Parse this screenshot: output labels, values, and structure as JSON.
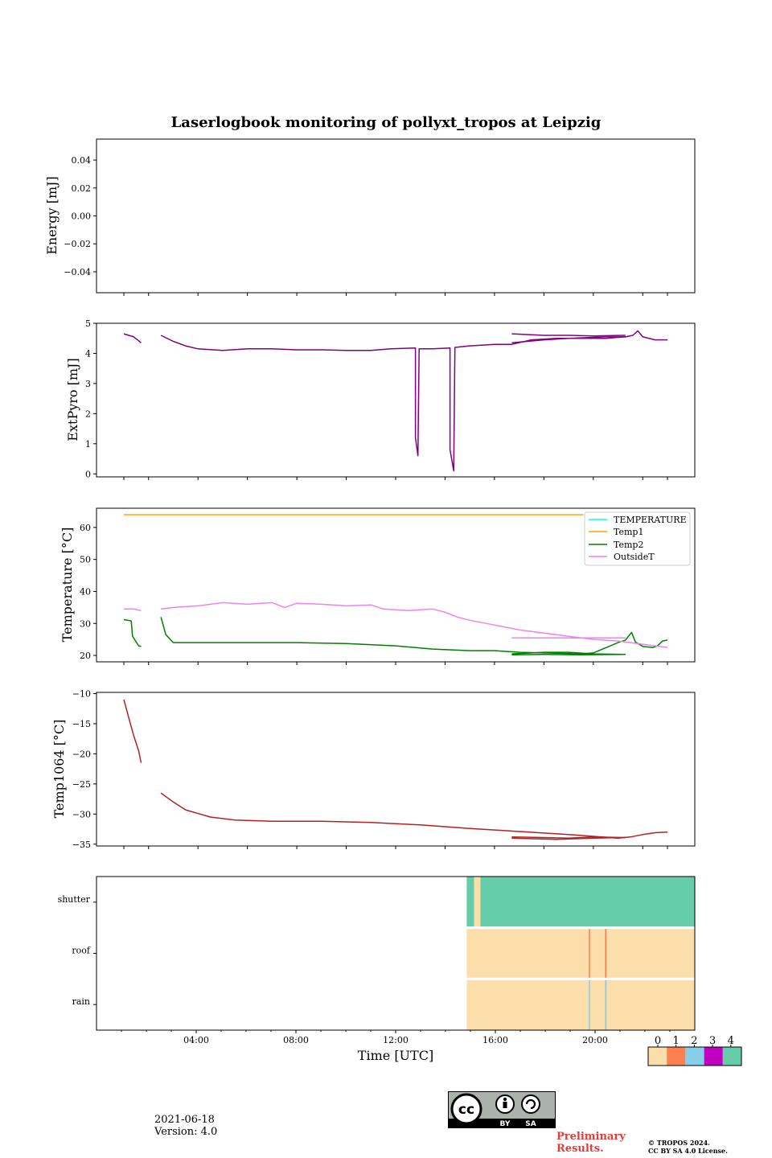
{
  "title": "Laserlogbook monitoring of pollyxt_tropos at Leipzig",
  "xaxis": {
    "label": "Time [UTC]",
    "ticks": [
      "04:00",
      "08:00",
      "12:00",
      "16:00",
      "20:00"
    ]
  },
  "footer": {
    "date": "2021-06-18",
    "version": "Version: 4.0",
    "preliminary": "Preliminary Results.",
    "copyright_line1": "© TROPOS 2024.",
    "copyright_line2": "CC BY SA 4.0 License.",
    "cc_by": "BY",
    "cc_sa": "SA"
  },
  "colors": {
    "extpyro": "#800080",
    "temperature": "#00ffff",
    "temp1": "#ffa500",
    "temp2": "#008000",
    "outsideT": "#ee82ee",
    "temp1064": "#b22222",
    "status": [
      "#fcdeaa",
      "#ff7f50",
      "#87ceeb",
      "#c000c0",
      "#66cdaa"
    ]
  },
  "chart_data": [
    {
      "type": "line",
      "name": "energy",
      "ylabel": "Energy [mJ]",
      "ylim": [
        -0.055,
        0.055
      ],
      "yticks": [
        -0.04,
        -0.02,
        0.0,
        0.02,
        0.04
      ],
      "ytick_labels": [
        "−0.04",
        "−0.02",
        "0.00",
        "0.02",
        "0.04"
      ],
      "series": []
    },
    {
      "type": "line",
      "name": "extpyro",
      "ylabel": "ExtPyro [mJ]",
      "ylim": [
        -0.1,
        5.0
      ],
      "yticks": [
        0,
        1,
        2,
        3,
        4,
        5
      ],
      "ytick_labels": [
        "0",
        "1",
        "2",
        "3",
        "4",
        "5"
      ],
      "series": [
        {
          "name": "ExtPyro",
          "segments": [
            [
              [
                1.0,
                4.65
              ],
              [
                1.2,
                4.6
              ],
              [
                1.4,
                4.55
              ],
              [
                1.55,
                4.45
              ],
              [
                1.7,
                4.35
              ]
            ],
            [
              [
                2.5,
                4.6
              ],
              [
                3.0,
                4.4
              ],
              [
                3.5,
                4.25
              ],
              [
                4.0,
                4.15
              ],
              [
                5.0,
                4.1
              ],
              [
                6.0,
                4.15
              ],
              [
                7.0,
                4.15
              ],
              [
                8.0,
                4.12
              ],
              [
                9.0,
                4.12
              ],
              [
                10.0,
                4.1
              ],
              [
                11.0,
                4.1
              ],
              [
                11.8,
                4.15
              ],
              [
                12.8,
                4.18
              ],
              [
                12.8,
                1.2
              ],
              [
                12.9,
                0.6
              ],
              [
                12.95,
                4.15
              ],
              [
                13.5,
                4.15
              ],
              [
                14.2,
                4.18
              ],
              [
                14.2,
                0.8
              ],
              [
                14.35,
                0.1
              ],
              [
                14.4,
                4.2
              ],
              [
                15.0,
                4.25
              ],
              [
                16.0,
                4.3
              ],
              [
                16.7,
                4.3
              ],
              [
                17.5,
                4.45
              ],
              [
                18.5,
                4.5
              ],
              [
                19.5,
                4.5
              ],
              [
                20.5,
                4.5
              ],
              [
                21.3,
                4.55
              ],
              [
                21.6,
                4.6
              ],
              [
                21.8,
                4.75
              ],
              [
                22.0,
                4.55
              ],
              [
                22.5,
                4.45
              ],
              [
                23.0,
                4.45
              ]
            ],
            [
              [
                16.7,
                4.65
              ],
              [
                18.0,
                4.6
              ],
              [
                19.0,
                4.6
              ],
              [
                20.0,
                4.58
              ],
              [
                21.3,
                4.6
              ]
            ],
            [
              [
                16.7,
                4.35
              ],
              [
                18.0,
                4.45
              ],
              [
                19.0,
                4.5
              ],
              [
                20.5,
                4.55
              ],
              [
                21.3,
                4.55
              ]
            ]
          ]
        }
      ]
    },
    {
      "type": "line",
      "name": "temperatures",
      "ylabel": "Temperature [°C]",
      "ylim": [
        18,
        66
      ],
      "yticks": [
        20,
        30,
        40,
        50,
        60
      ],
      "ytick_labels": [
        "20",
        "30",
        "40",
        "50",
        "60"
      ],
      "legend": [
        "TEMPERATURE",
        "Temp1",
        "Temp2",
        "OutsideT"
      ],
      "legend_loc": "upper right",
      "series": [
        {
          "name": "TEMPERATURE",
          "segments": []
        },
        {
          "name": "Temp1",
          "segments": [
            [
              [
                1.0,
                64.0
              ],
              [
                19.6,
                64.0
              ]
            ]
          ]
        },
        {
          "name": "Temp2",
          "segments": [
            [
              [
                1.0,
                31.2
              ],
              [
                1.3,
                30.8
              ],
              [
                1.35,
                26.0
              ],
              [
                1.6,
                23.0
              ],
              [
                1.7,
                22.8
              ]
            ],
            [
              [
                2.5,
                32.0
              ],
              [
                2.7,
                26.5
              ],
              [
                3.0,
                24.0
              ],
              [
                5.0,
                24.0
              ],
              [
                8.0,
                24.0
              ],
              [
                10.0,
                23.7
              ],
              [
                12.0,
                23.0
              ],
              [
                13.5,
                22.0
              ],
              [
                15.0,
                21.5
              ],
              [
                16.0,
                21.5
              ],
              [
                17.0,
                21.0
              ],
              [
                18.5,
                20.7
              ],
              [
                19.5,
                20.5
              ],
              [
                20.0,
                20.8
              ],
              [
                21.0,
                24.0
              ],
              [
                21.3,
                24.8
              ],
              [
                21.55,
                27.2
              ],
              [
                21.7,
                24.2
              ],
              [
                22.0,
                22.8
              ],
              [
                22.4,
                22.5
              ],
              [
                22.6,
                23.0
              ],
              [
                22.8,
                24.5
              ],
              [
                23.0,
                24.8
              ]
            ],
            [
              [
                16.7,
                20.5
              ],
              [
                18.0,
                21.0
              ],
              [
                19.0,
                21.0
              ],
              [
                20.0,
                20.5
              ],
              [
                21.3,
                20.3
              ]
            ],
            [
              [
                16.7,
                20.2
              ],
              [
                18.0,
                20.3
              ],
              [
                19.5,
                20.2
              ],
              [
                21.3,
                20.3
              ]
            ]
          ]
        },
        {
          "name": "OutsideT",
          "segments": [
            [
              [
                1.0,
                34.5
              ],
              [
                1.4,
                34.5
              ],
              [
                1.7,
                34.0
              ]
            ],
            [
              [
                2.5,
                34.5
              ],
              [
                3.0,
                35.0
              ],
              [
                4.0,
                35.5
              ],
              [
                5.0,
                36.5
              ],
              [
                6.0,
                36.0
              ],
              [
                7.0,
                36.5
              ],
              [
                7.5,
                35.0
              ],
              [
                8.0,
                36.3
              ],
              [
                9.0,
                36.0
              ],
              [
                10.0,
                35.5
              ],
              [
                11.0,
                35.8
              ],
              [
                11.5,
                34.5
              ],
              [
                12.5,
                34.0
              ],
              [
                13.5,
                34.5
              ],
              [
                14.0,
                33.5
              ],
              [
                14.5,
                32.0
              ],
              [
                15.0,
                31.0
              ],
              [
                16.0,
                29.5
              ],
              [
                17.0,
                28.0
              ],
              [
                18.0,
                27.0
              ],
              [
                19.0,
                26.0
              ],
              [
                20.0,
                25.0
              ],
              [
                21.0,
                24.5
              ],
              [
                22.0,
                23.5
              ],
              [
                23.0,
                22.5
              ]
            ],
            [
              [
                16.7,
                25.5
              ],
              [
                18.0,
                25.5
              ],
              [
                19.5,
                25.5
              ],
              [
                21.3,
                25.5
              ]
            ]
          ]
        }
      ]
    },
    {
      "type": "line",
      "name": "temp1064",
      "ylabel": "Temp1064 [°C]",
      "ylim": [
        -35.3,
        -9.8
      ],
      "yticks": [
        -35,
        -30,
        -25,
        -20,
        -15,
        -10
      ],
      "ytick_labels": [
        "−35",
        "−30",
        "−25",
        "−20",
        "−15",
        "−10"
      ],
      "series": [
        {
          "name": "Temp1064",
          "segments": [
            [
              [
                1.0,
                -11.0
              ],
              [
                1.2,
                -14.0
              ],
              [
                1.4,
                -17.0
              ],
              [
                1.6,
                -19.5
              ],
              [
                1.7,
                -21.5
              ]
            ],
            [
              [
                2.5,
                -26.5
              ],
              [
                3.0,
                -28.0
              ],
              [
                3.5,
                -29.3
              ],
              [
                4.5,
                -30.5
              ],
              [
                5.5,
                -31.0
              ],
              [
                7.0,
                -31.2
              ],
              [
                9.0,
                -31.2
              ],
              [
                11.0,
                -31.4
              ],
              [
                13.0,
                -31.8
              ],
              [
                15.0,
                -32.4
              ],
              [
                17.0,
                -32.9
              ],
              [
                19.0,
                -33.4
              ],
              [
                20.0,
                -33.7
              ],
              [
                21.0,
                -34.0
              ],
              [
                21.5,
                -33.8
              ],
              [
                22.0,
                -33.4
              ],
              [
                22.5,
                -33.1
              ],
              [
                23.0,
                -33.0
              ]
            ],
            [
              [
                16.7,
                -33.8
              ],
              [
                18.0,
                -33.9
              ],
              [
                19.0,
                -34.0
              ],
              [
                20.0,
                -33.8
              ],
              [
                21.3,
                -33.9
              ]
            ],
            [
              [
                16.7,
                -34.0
              ],
              [
                18.5,
                -34.2
              ],
              [
                20.0,
                -34.0
              ],
              [
                21.3,
                -33.9
              ]
            ]
          ]
        }
      ]
    },
    {
      "type": "heatmap",
      "name": "status",
      "rows": [
        "shutter",
        "roof",
        "rain"
      ],
      "colorbar_ticks": [
        "0",
        "1",
        "2",
        "3",
        "4"
      ],
      "cells": [
        {
          "row": "shutter",
          "spans": [
            [
              14.85,
              15.15,
              4
            ],
            [
              15.15,
              15.4,
              0
            ],
            [
              15.4,
              24.0,
              4
            ]
          ]
        },
        {
          "row": "roof",
          "spans": [
            [
              14.85,
              24.0,
              0
            ],
            [
              19.75,
              19.8,
              1
            ],
            [
              20.4,
              20.46,
              1
            ]
          ]
        },
        {
          "row": "rain",
          "spans": [
            [
              14.85,
              24.0,
              0
            ],
            [
              19.75,
              19.8,
              2
            ],
            [
              20.4,
              20.46,
              2
            ]
          ]
        }
      ]
    }
  ]
}
